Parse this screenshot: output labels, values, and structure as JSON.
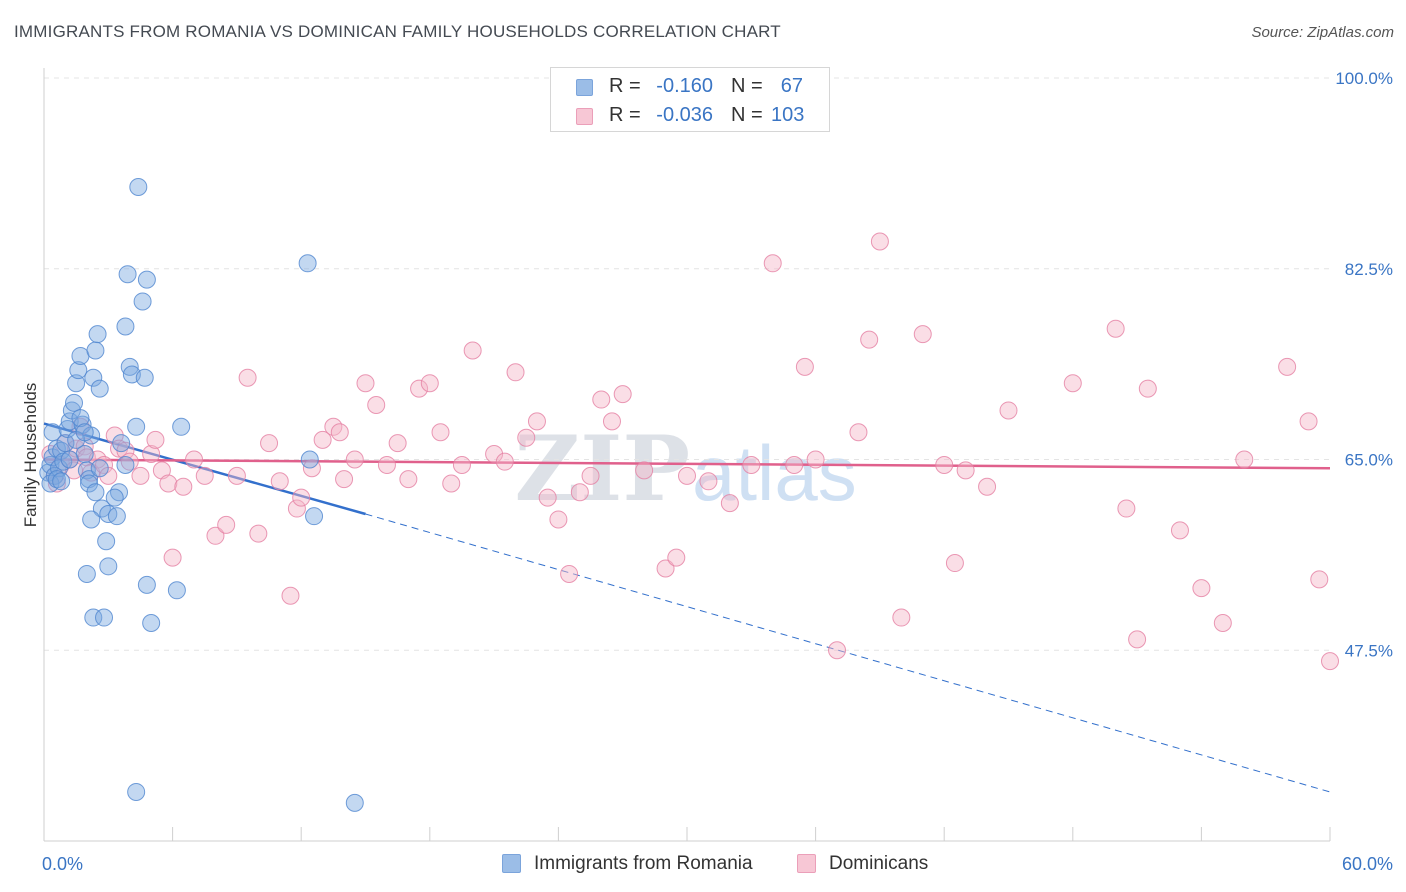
{
  "title": "IMMIGRANTS FROM ROMANIA VS DOMINICAN FAMILY HOUSEHOLDS CORRELATION CHART",
  "source": "Source: ZipAtlas.com",
  "watermark": {
    "bold": "ZIP",
    "light": "atlas"
  },
  "legend": {
    "rows": [
      {
        "r_label": "R =",
        "r_value": "-0.160",
        "n_label": "N =",
        "n_value": "67",
        "color": "#7aa8e0"
      },
      {
        "r_label": "R =",
        "r_value": "-0.036",
        "n_label": "N =",
        "n_value": "103",
        "color": "#f0a0bc"
      }
    ]
  },
  "chart_data": {
    "type": "scatter",
    "title": "IMMIGRANTS FROM ROMANIA VS DOMINICAN FAMILY HOUSEHOLDS CORRELATION CHART",
    "xlabel": "",
    "ylabel": "Family Households",
    "xlim": [
      0,
      60
    ],
    "ylim": [
      30,
      100
    ],
    "x_tick_labels": [
      "0.0%",
      "60.0%"
    ],
    "y_ticks": [
      47.5,
      65.0,
      82.5,
      100.0
    ],
    "y_tick_labels": [
      "47.5%",
      "65.0%",
      "82.5%",
      "100.0%"
    ],
    "grid": true,
    "legend_position": "top-center",
    "series": [
      {
        "name": "Immigrants from Romania",
        "color": "#7aa8e0",
        "stroke": "#4f86d0",
        "trend": {
          "start": [
            0,
            68.3
          ],
          "end": [
            15,
            60.0
          ],
          "dashed_to": [
            60,
            34.5
          ],
          "color": "#3370cc"
        },
        "points": [
          [
            0.2,
            63.8
          ],
          [
            0.3,
            64.5
          ],
          [
            0.4,
            65.2
          ],
          [
            0.5,
            63.5
          ],
          [
            0.6,
            66.0
          ],
          [
            0.4,
            67.5
          ],
          [
            0.7,
            64.2
          ],
          [
            0.8,
            65.8
          ],
          [
            0.3,
            62.8
          ],
          [
            0.6,
            63.2
          ],
          [
            0.9,
            64.8
          ],
          [
            1.0,
            66.5
          ],
          [
            1.1,
            67.8
          ],
          [
            1.2,
            68.5
          ],
          [
            1.3,
            69.5
          ],
          [
            1.4,
            70.2
          ],
          [
            1.5,
            72.0
          ],
          [
            1.6,
            73.2
          ],
          [
            1.7,
            74.5
          ],
          [
            1.8,
            68.2
          ],
          [
            1.9,
            65.5
          ],
          [
            2.0,
            64.0
          ],
          [
            2.1,
            63.2
          ],
          [
            2.2,
            67.2
          ],
          [
            1.7,
            68.8
          ],
          [
            1.5,
            66.8
          ],
          [
            1.9,
            67.5
          ],
          [
            2.3,
            72.5
          ],
          [
            2.4,
            75.0
          ],
          [
            2.5,
            76.5
          ],
          [
            2.6,
            71.5
          ],
          [
            2.1,
            62.8
          ],
          [
            2.4,
            62.0
          ],
          [
            2.7,
            60.5
          ],
          [
            2.2,
            59.5
          ],
          [
            2.9,
            57.5
          ],
          [
            3.0,
            55.2
          ],
          [
            2.0,
            54.5
          ],
          [
            2.3,
            50.5
          ],
          [
            3.0,
            60.0
          ],
          [
            3.5,
            62.0
          ],
          [
            3.4,
            59.8
          ],
          [
            3.3,
            61.5
          ],
          [
            3.6,
            66.5
          ],
          [
            3.8,
            77.2
          ],
          [
            3.9,
            82.0
          ],
          [
            4.0,
            73.5
          ],
          [
            4.1,
            72.8
          ],
          [
            4.3,
            68.0
          ],
          [
            4.4,
            90.0
          ],
          [
            4.6,
            79.5
          ],
          [
            4.7,
            72.5
          ],
          [
            4.8,
            81.5
          ],
          [
            3.8,
            64.5
          ],
          [
            4.8,
            53.5
          ],
          [
            5.0,
            50.0
          ],
          [
            2.8,
            50.5
          ],
          [
            6.2,
            53.0
          ],
          [
            6.4,
            68.0
          ],
          [
            12.3,
            83.0
          ],
          [
            12.4,
            65.0
          ],
          [
            12.6,
            59.8
          ],
          [
            4.3,
            34.5
          ],
          [
            14.5,
            33.5
          ],
          [
            1.2,
            65.0
          ],
          [
            0.8,
            63.0
          ],
          [
            2.6,
            64.2
          ]
        ]
      },
      {
        "name": "Dominicans",
        "color": "#f5b5c8",
        "stroke": "#e57fa2",
        "trend": {
          "start": [
            0,
            65.0
          ],
          "end": [
            60,
            64.2
          ],
          "color": "#e0608c"
        },
        "points": [
          [
            0.3,
            65.5
          ],
          [
            0.5,
            63.5
          ],
          [
            0.6,
            62.8
          ],
          [
            0.8,
            64.5
          ],
          [
            1.0,
            66.5
          ],
          [
            1.2,
            65.0
          ],
          [
            1.4,
            64.0
          ],
          [
            1.5,
            66.0
          ],
          [
            1.7,
            68.0
          ],
          [
            1.9,
            66.2
          ],
          [
            2.0,
            65.2
          ],
          [
            2.2,
            63.8
          ],
          [
            2.5,
            65.0
          ],
          [
            2.8,
            64.5
          ],
          [
            3.0,
            63.5
          ],
          [
            3.3,
            67.2
          ],
          [
            3.5,
            66.0
          ],
          [
            3.8,
            65.8
          ],
          [
            4.0,
            64.8
          ],
          [
            4.5,
            63.5
          ],
          [
            5.0,
            65.5
          ],
          [
            5.2,
            66.8
          ],
          [
            5.5,
            64.0
          ],
          [
            5.8,
            62.8
          ],
          [
            6.0,
            56.0
          ],
          [
            6.5,
            62.5
          ],
          [
            7.0,
            65.0
          ],
          [
            7.5,
            63.5
          ],
          [
            8.0,
            58.0
          ],
          [
            8.5,
            59.0
          ],
          [
            9.0,
            63.5
          ],
          [
            9.5,
            72.5
          ],
          [
            10.0,
            58.2
          ],
          [
            10.5,
            66.5
          ],
          [
            11.0,
            63.0
          ],
          [
            11.5,
            52.5
          ],
          [
            11.8,
            60.5
          ],
          [
            12.0,
            61.5
          ],
          [
            12.5,
            64.2
          ],
          [
            13.0,
            66.8
          ],
          [
            13.5,
            68.0
          ],
          [
            13.8,
            67.5
          ],
          [
            14.0,
            63.2
          ],
          [
            14.5,
            65.0
          ],
          [
            15.0,
            72.0
          ],
          [
            15.5,
            70.0
          ],
          [
            16.0,
            64.5
          ],
          [
            16.5,
            66.5
          ],
          [
            17.0,
            63.2
          ],
          [
            17.5,
            71.5
          ],
          [
            18.0,
            72.0
          ],
          [
            18.5,
            67.5
          ],
          [
            19.0,
            62.8
          ],
          [
            19.5,
            64.5
          ],
          [
            20.0,
            75.0
          ],
          [
            21.0,
            65.5
          ],
          [
            21.5,
            64.8
          ],
          [
            22.0,
            73.0
          ],
          [
            22.5,
            67.0
          ],
          [
            23.0,
            68.5
          ],
          [
            23.5,
            61.5
          ],
          [
            24.0,
            59.5
          ],
          [
            24.5,
            54.5
          ],
          [
            25.0,
            62.0
          ],
          [
            25.5,
            63.5
          ],
          [
            26.0,
            70.5
          ],
          [
            26.5,
            68.5
          ],
          [
            27.0,
            71.0
          ],
          [
            28.0,
            64.0
          ],
          [
            29.0,
            55.0
          ],
          [
            29.5,
            56.0
          ],
          [
            30.0,
            63.5
          ],
          [
            31.0,
            63.0
          ],
          [
            32.0,
            61.0
          ],
          [
            33.0,
            64.5
          ],
          [
            34.0,
            83.0
          ],
          [
            35.0,
            64.5
          ],
          [
            35.5,
            73.5
          ],
          [
            36.0,
            65.0
          ],
          [
            37.0,
            47.5
          ],
          [
            38.0,
            67.5
          ],
          [
            38.5,
            76.0
          ],
          [
            39.0,
            85.0
          ],
          [
            40.0,
            50.5
          ],
          [
            41.0,
            76.5
          ],
          [
            42.0,
            64.5
          ],
          [
            42.5,
            55.5
          ],
          [
            43.0,
            64.0
          ],
          [
            44.0,
            62.5
          ],
          [
            45.0,
            69.5
          ],
          [
            48.0,
            72.0
          ],
          [
            50.0,
            77.0
          ],
          [
            50.5,
            60.5
          ],
          [
            51.0,
            48.5
          ],
          [
            51.5,
            71.5
          ],
          [
            53.0,
            58.5
          ],
          [
            54.0,
            53.2
          ],
          [
            55.0,
            50.0
          ],
          [
            56.0,
            65.0
          ],
          [
            58.0,
            73.5
          ],
          [
            59.0,
            68.5
          ],
          [
            60.0,
            46.5
          ],
          [
            59.5,
            54.0
          ]
        ]
      }
    ]
  }
}
